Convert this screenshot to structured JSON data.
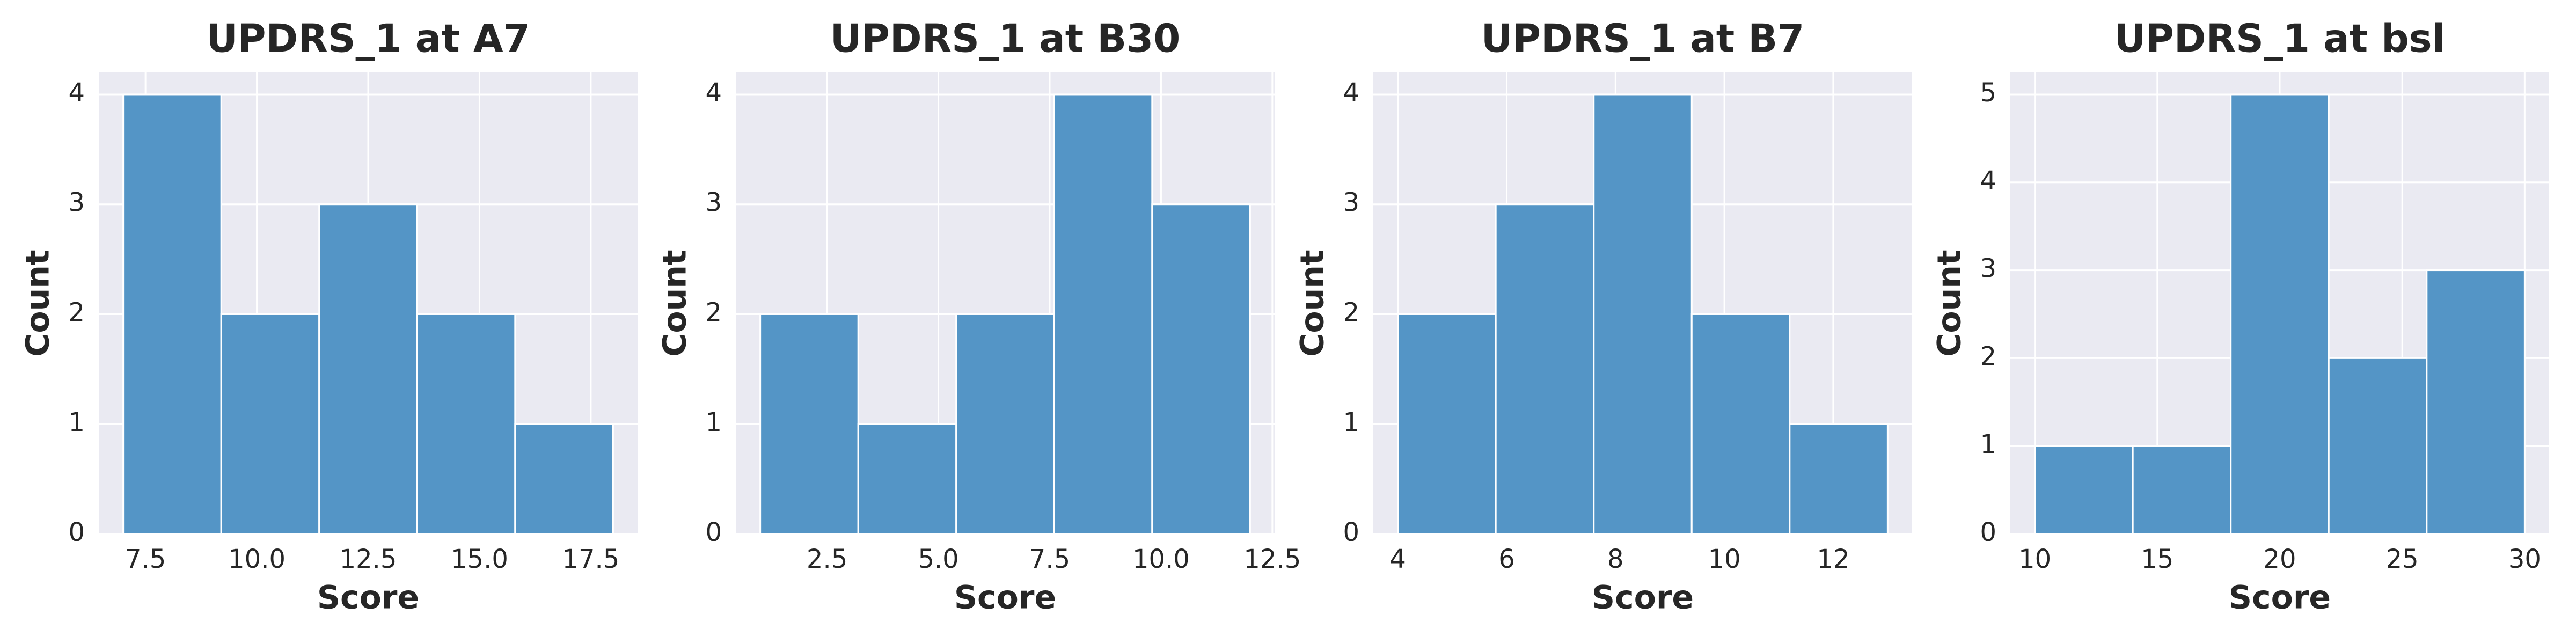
{
  "chart_data": [
    {
      "type": "histogram",
      "title": "UPDRS_1 at A7",
      "xlabel": "Score",
      "ylabel": "Count",
      "bins": [
        7,
        9.2,
        11.4,
        13.6,
        15.8,
        18
      ],
      "counts": [
        4,
        2,
        3,
        2,
        1
      ],
      "xlim": [
        6.45,
        18.55
      ],
      "ylim": [
        0,
        4.2
      ],
      "xticks": [
        7.5,
        {
          "value": 10,
          "label": "10.0"
        },
        12.5,
        {
          "value": 15,
          "label": "15.0"
        },
        17.5
      ],
      "yticks": [
        0,
        1,
        2,
        3,
        4
      ],
      "color": "#5495c6",
      "grid": true
    },
    {
      "type": "histogram",
      "title": "UPDRS_1 at B30",
      "xlabel": "Score",
      "ylabel": "Count",
      "bins": [
        1,
        3.2,
        5.4,
        7.6,
        9.8,
        12
      ],
      "counts": [
        2,
        1,
        2,
        4,
        3
      ],
      "xlim": [
        0.45,
        12.55
      ],
      "ylim": [
        0,
        4.2
      ],
      "xticks": [
        2.5,
        {
          "value": 5,
          "label": "5.0"
        },
        7.5,
        {
          "value": 10,
          "label": "10.0"
        },
        12.5
      ],
      "yticks": [
        0,
        1,
        2,
        3,
        4
      ],
      "color": "#5495c6",
      "grid": true
    },
    {
      "type": "histogram",
      "title": "UPDRS_1 at B7",
      "xlabel": "Score",
      "ylabel": "Count",
      "bins": [
        4,
        5.8,
        7.6,
        9.4,
        11.2,
        13
      ],
      "counts": [
        2,
        3,
        4,
        2,
        1
      ],
      "xlim": [
        3.55,
        13.45
      ],
      "ylim": [
        0,
        4.2
      ],
      "xticks": [
        4,
        6,
        8,
        10,
        12
      ],
      "yticks": [
        0,
        1,
        2,
        3,
        4
      ],
      "color": "#5495c6",
      "grid": true
    },
    {
      "type": "histogram",
      "title": "UPDRS_1 at bsl",
      "xlabel": "Score",
      "ylabel": "Count",
      "bins": [
        10,
        14,
        18,
        22,
        26,
        30
      ],
      "counts": [
        1,
        1,
        5,
        2,
        3
      ],
      "xlim": [
        9,
        31
      ],
      "ylim": [
        0,
        5.25
      ],
      "xticks": [
        10,
        15,
        20,
        25,
        30
      ],
      "yticks": [
        0,
        1,
        2,
        3,
        4,
        5
      ],
      "color": "#5495c6",
      "grid": true
    }
  ]
}
